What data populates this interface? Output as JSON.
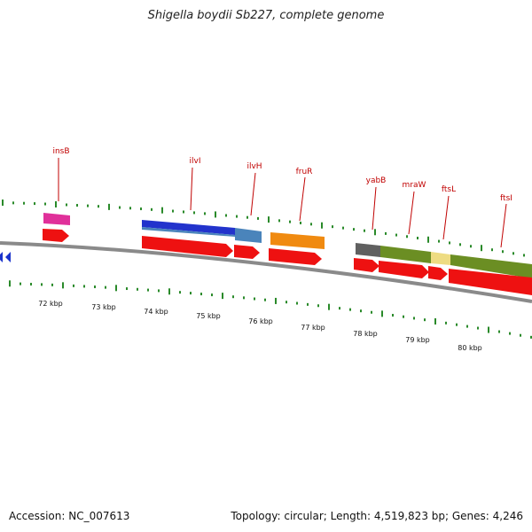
{
  "title": "Shigella boydii Sb227, complete genome",
  "footer": {
    "accession": "Accession: NC_007613",
    "summary": "Topology: circular; Length: 4,519,823 bp; Genes: 4,246"
  },
  "colors": {
    "label": "#c00000",
    "tick": "#2a8a2a",
    "backbone": "#8a8a8a",
    "cds": "#ee1111"
  },
  "ruler": [
    "72 kbp",
    "73 kbp",
    "74 kbp",
    "75 kbp",
    "76 kbp",
    "77 kbp",
    "78 kbp",
    "79 kbp",
    "80 kbp"
  ],
  "genes": [
    {
      "name": "insB",
      "color": "#e0309a"
    },
    {
      "name": "ilvI",
      "color": "#2233cc"
    },
    {
      "name": "ilvH",
      "color": "#4a84bb"
    },
    {
      "name": "fruR",
      "color": "#f08a10"
    },
    {
      "name": "yabB",
      "color": "#606060"
    },
    {
      "name": "mraW",
      "color": "#6b8e23"
    },
    {
      "name": "ftsL",
      "color": "#eedc82"
    },
    {
      "name": "ftsI",
      "color": "#6b8e23"
    }
  ]
}
